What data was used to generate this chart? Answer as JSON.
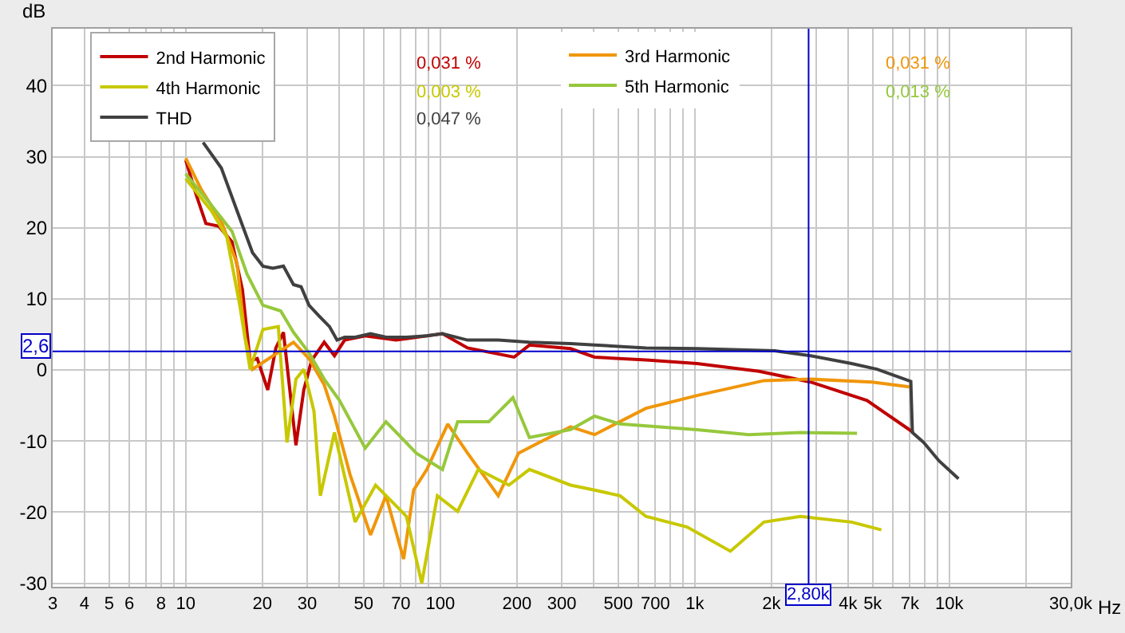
{
  "chart_data": {
    "type": "line",
    "ylabel": "dB",
    "xlabel": "Hz",
    "xlim": [
      3,
      30000
    ],
    "ylim": [
      -30.5,
      48
    ],
    "log": "x",
    "grid": true,
    "legend": "top",
    "line_style": "solid",
    "marker": "none",
    "xticks": [
      3,
      4,
      5,
      6,
      {
        "value": 7,
        "label": null
      },
      8,
      {
        "value": 9,
        "label": null
      },
      10,
      20,
      30,
      {
        "value": 40,
        "label": null
      },
      50,
      {
        "value": 60,
        "label": null
      },
      70,
      {
        "value": 80,
        "label": null
      },
      {
        "value": 90,
        "label": null
      },
      100,
      200,
      300,
      {
        "value": 400,
        "label": null
      },
      500,
      {
        "value": 600,
        "label": null
      },
      700,
      {
        "value": 800,
        "label": null
      },
      {
        "value": 900,
        "label": null
      },
      {
        "value": 1000,
        "label": "1k"
      },
      {
        "value": 2000,
        "label": "2k"
      },
      {
        "value": 3000,
        "label": null
      },
      {
        "value": 4000,
        "label": "4k"
      },
      {
        "value": 5000,
        "label": "5k"
      },
      {
        "value": 6000,
        "label": null
      },
      {
        "value": 7000,
        "label": "7k"
      },
      {
        "value": 8000,
        "label": null
      },
      {
        "value": 9000,
        "label": null
      },
      {
        "value": 10000,
        "label": "10k"
      },
      {
        "value": 20000,
        "label": null
      },
      {
        "value": 30000,
        "label": "30,0k"
      }
    ],
    "yticks": [
      -30,
      -20,
      -10,
      0,
      10,
      20,
      30,
      40
    ],
    "ref_lines": [
      {
        "axis": "x",
        "value": 2800,
        "label": "2,80k",
        "color": "#0000c8"
      },
      {
        "axis": "y",
        "value": 2.6,
        "label": "2,6",
        "color": "#0000c8"
      }
    ],
    "annotations": [
      "0,031 %",
      "0,031 %",
      "0,003 %",
      "0,013 %",
      "0,047 %"
    ],
    "series": [
      {
        "name": "2nd Harmonic",
        "color": "#c00000",
        "x": [
          10,
          11,
          12,
          13.5,
          15.2,
          16.7,
          17.9,
          19.1,
          21,
          22.6,
          24.2,
          27.1,
          29.1,
          31.2,
          35,
          38.4,
          42.1,
          50.7,
          67,
          102,
          128,
          195,
          224,
          325,
          404,
          643,
          1020,
          1790,
          2850,
          4750,
          7230
        ],
        "values": [
          29.5,
          24.6,
          20.6,
          20.2,
          18,
          11.3,
          1.3,
          1.6,
          -2.8,
          3.1,
          5.3,
          -10.6,
          -2.8,
          1.3,
          3.9,
          2,
          4.2,
          4.8,
          4.2,
          5.1,
          3.1,
          1.8,
          3.5,
          3,
          1.8,
          1.4,
          0.9,
          -0.2,
          -1.7,
          -4.3,
          -8.8
        ]
      },
      {
        "name": "3rd Harmonic",
        "color": "#f0960a",
        "x": [
          10,
          11.5,
          13.8,
          15.9,
          17.1,
          18.3,
          26.5,
          30.5,
          35,
          38.4,
          44.2,
          53.2,
          61.2,
          71.8,
          78.6,
          88.6,
          107,
          128,
          169,
          203,
          245,
          325,
          404,
          643,
          1020,
          1870,
          2850,
          4970,
          7060
        ],
        "values": [
          29.8,
          25.4,
          20.9,
          15,
          4.6,
          0.1,
          3.9,
          1.6,
          -2.1,
          -6.5,
          -14.7,
          -23.2,
          -17.7,
          -26.6,
          -16.9,
          -14,
          -7.6,
          -11.7,
          -17.7,
          -11.7,
          -10.2,
          -8,
          -9.1,
          -5.4,
          -3.6,
          -1.5,
          -1.3,
          -1.7,
          -2.4
        ]
      },
      {
        "name": "4th Harmonic",
        "color": "#c8c800",
        "x": [
          10,
          12.6,
          14.5,
          16.3,
          17.9,
          20.1,
          23.1,
          25,
          27.1,
          29.1,
          31.9,
          33.8,
          38.4,
          46.3,
          55.7,
          64.1,
          73.6,
          84.6,
          97.4,
          117,
          141,
          186,
          224,
          325,
          404,
          509,
          643,
          933,
          1380,
          1870,
          2600,
          4130,
          5410
        ],
        "values": [
          26.9,
          22.4,
          18.7,
          9.1,
          0.1,
          5.7,
          6.1,
          -10.2,
          -1.3,
          0.1,
          -5.8,
          -17.7,
          -8.8,
          -21.4,
          -16.2,
          -18.4,
          -20.6,
          -30,
          -17.7,
          -19.9,
          -14,
          -16.2,
          -14,
          -16.2,
          -16.9,
          -17.7,
          -20.6,
          -22.1,
          -25.5,
          -21.4,
          -20.6,
          -21.4,
          -22.5
        ]
      },
      {
        "name": "5th Harmonic",
        "color": "#96c83c",
        "x": [
          10,
          12.6,
          15.2,
          17.4,
          20.1,
          23.6,
          26.5,
          30.5,
          35,
          40.2,
          50.7,
          61.2,
          80.5,
          102,
          117,
          155,
          193,
          224,
          325,
          404,
          509,
          1020,
          1630,
          2600,
          4340
        ],
        "values": [
          27.6,
          23.2,
          19.5,
          13.5,
          9.1,
          8.3,
          5.3,
          2.4,
          -1.3,
          -4.3,
          -11,
          -7.3,
          -11.7,
          -14,
          -7.3,
          -7.3,
          -3.9,
          -9.5,
          -8.4,
          -6.5,
          -7.6,
          -8.4,
          -9.1,
          -8.8,
          -8.9
        ]
      },
      {
        "name": "THD",
        "color": "#404040",
        "x": [
          11.7,
          13.8,
          15.9,
          18.3,
          20.1,
          22,
          24.2,
          26.5,
          28.4,
          30.5,
          33.4,
          36.7,
          39.3,
          42.1,
          46.3,
          53.2,
          61.2,
          73.6,
          88.6,
          102,
          128,
          169,
          224,
          325,
          404,
          643,
          1020,
          2060,
          2850,
          4130,
          5200,
          7060,
          7160,
          7930,
          9120,
          10870
        ],
        "values": [
          32,
          28.4,
          22.4,
          16.5,
          14.6,
          14.3,
          14.6,
          12,
          11.7,
          9.1,
          7.6,
          6.1,
          4.2,
          4.6,
          4.6,
          5.1,
          4.6,
          4.6,
          4.8,
          5.1,
          4.2,
          4.2,
          3.9,
          3.7,
          3.5,
          3.1,
          3,
          2.7,
          2,
          0.9,
          0.1,
          -1.6,
          -8.8,
          -10.2,
          -12.8,
          -15.3
        ]
      }
    ]
  }
}
